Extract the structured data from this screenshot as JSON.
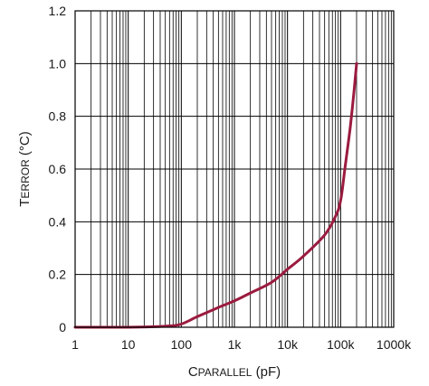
{
  "chart_data": {
    "type": "line",
    "x_scale": "log",
    "xlim": [
      1,
      1000000
    ],
    "ylim": [
      0,
      1.2
    ],
    "grid": true,
    "x_ticks": [
      1,
      10,
      100,
      1000,
      10000,
      100000,
      1000000
    ],
    "x_tick_labels": [
      "1",
      "10",
      "100",
      "1k",
      "10k",
      "100k",
      "1000k"
    ],
    "y_ticks": [
      0,
      0.2,
      0.4,
      0.6,
      0.8,
      1.0,
      1.2
    ],
    "y_tick_labels": [
      "0",
      "0.2",
      "0.4",
      "0.6",
      "0.8",
      "1.0",
      "1.2"
    ],
    "xlabel": {
      "main": "C",
      "sub": "PARALLEL",
      "rest": " (pF)"
    },
    "ylabel": {
      "main": "T",
      "sub": "ERROR",
      "rest": " (°C)"
    },
    "line_color": "#9b1b3f",
    "series": [
      {
        "x": [
          1,
          10,
          30,
          60,
          100,
          200,
          500,
          1000,
          2000,
          5000,
          10000,
          20000,
          50000,
          80000,
          100000,
          120000,
          150000,
          180000,
          200000
        ],
        "y": [
          0,
          0,
          0.002,
          0.005,
          0.012,
          0.04,
          0.075,
          0.1,
          0.13,
          0.17,
          0.22,
          0.27,
          0.35,
          0.42,
          0.48,
          0.6,
          0.75,
          0.9,
          1.0
        ]
      }
    ]
  }
}
